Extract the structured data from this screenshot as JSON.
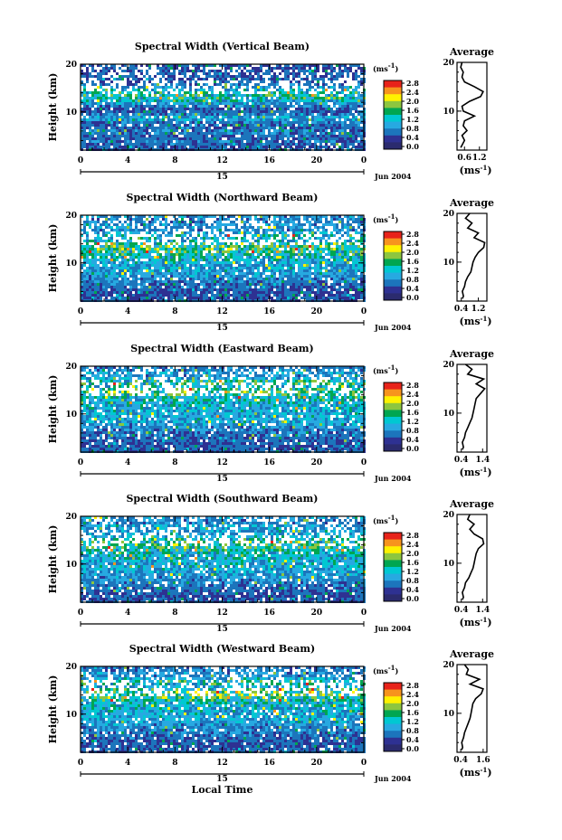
{
  "chart_data": {
    "type": "heatmap",
    "date_label": "Jun 2004",
    "day_label": "15",
    "xlabel": "Local Time",
    "ylabel": "Height (km)",
    "x_ticks": [
      "0",
      "4",
      "8",
      "12",
      "16",
      "20",
      "0"
    ],
    "y_ticks": [
      "20",
      "10"
    ],
    "xlim": [
      0,
      24
    ],
    "ylim": [
      2,
      20
    ],
    "colorbar": {
      "unit": "(ms",
      "unit_exp": "-1",
      "unit_close": ")",
      "labels": [
        "2.8",
        "2.4",
        "2.0",
        "1.6",
        "1.2",
        "0.8",
        "0.4",
        "0.0"
      ],
      "range": [
        0,
        2.8
      ],
      "colors": [
        "#e8231a",
        "#f7941d",
        "#fff200",
        "#8dc63f",
        "#00a651",
        "#00c8d2",
        "#27a9e1",
        "#1c75bc",
        "#2e3192",
        "#2b2b6e"
      ]
    },
    "avg_title": "Average",
    "avg_unit": "(ms",
    "avg_unit_exp": "-1",
    "avg_unit_close": ")",
    "panels": [
      {
        "title": "Spectral Width (Vertical Beam)",
        "avg_ticks": [
          "0.6",
          "1.2"
        ],
        "avg_xlim": [
          0.3,
          1.5
        ],
        "average_profile": {
          "height_km": [
            2.5,
            3,
            4,
            5,
            6,
            7,
            8,
            9,
            10,
            11,
            12,
            13,
            14,
            15,
            16,
            17,
            18,
            19,
            20
          ],
          "width": [
            0.45,
            0.5,
            0.6,
            0.5,
            0.7,
            0.55,
            0.6,
            1.0,
            0.55,
            0.5,
            0.8,
            1.25,
            1.35,
            1.0,
            0.6,
            0.5,
            0.55,
            0.45,
            0.5
          ]
        }
      },
      {
        "title": "Spectral Width (Northward Beam)",
        "avg_ticks": [
          "0.4",
          "1.2"
        ],
        "avg_xlim": [
          0.2,
          1.6
        ],
        "average_profile": {
          "height_km": [
            2.5,
            3,
            4,
            5,
            6,
            7,
            8,
            9,
            10,
            11,
            12,
            13,
            14,
            15,
            16,
            17,
            18,
            19,
            20
          ],
          "width": [
            0.45,
            0.5,
            0.45,
            0.55,
            0.6,
            0.7,
            0.85,
            0.9,
            0.95,
            1.05,
            1.2,
            1.45,
            1.5,
            1.0,
            1.2,
            0.7,
            0.9,
            0.6,
            0.8
          ]
        }
      },
      {
        "title": "Spectral Width (Eastward Beam)",
        "avg_ticks": [
          "0.4",
          "1.4"
        ],
        "avg_xlim": [
          0.2,
          1.6
        ],
        "average_profile": {
          "height_km": [
            2.5,
            3,
            4,
            5,
            6,
            7,
            8,
            9,
            10,
            11,
            12,
            13,
            14,
            15,
            16,
            17,
            18,
            19,
            20
          ],
          "width": [
            0.45,
            0.5,
            0.45,
            0.55,
            0.6,
            0.7,
            0.8,
            0.9,
            0.95,
            1.0,
            1.05,
            1.1,
            1.3,
            1.5,
            1.1,
            1.45,
            0.7,
            0.9,
            0.6
          ]
        }
      },
      {
        "title": "Spectral Width (Southward Beam)",
        "avg_ticks": [
          "0.4",
          "1.4"
        ],
        "avg_xlim": [
          0.2,
          1.6
        ],
        "average_profile": {
          "height_km": [
            2.5,
            3,
            4,
            5,
            6,
            7,
            8,
            9,
            10,
            11,
            12,
            13,
            14,
            15,
            16,
            17,
            18,
            19,
            20
          ],
          "width": [
            0.45,
            0.5,
            0.45,
            0.55,
            0.6,
            0.75,
            0.85,
            0.95,
            1.0,
            1.05,
            1.1,
            1.2,
            1.45,
            1.4,
            1.0,
            0.8,
            1.0,
            0.7,
            0.8
          ]
        }
      },
      {
        "title": "Spectral Width (Westward Beam)",
        "avg_ticks": [
          "0.4",
          "1.6"
        ],
        "avg_xlim": [
          0.2,
          1.8
        ],
        "average_profile": {
          "height_km": [
            2.5,
            3,
            4,
            5,
            6,
            7,
            8,
            9,
            10,
            11,
            12,
            13,
            14,
            15,
            16,
            17,
            18,
            19,
            20
          ],
          "width": [
            0.45,
            0.5,
            0.45,
            0.55,
            0.6,
            0.7,
            0.8,
            0.9,
            0.95,
            1.0,
            1.05,
            1.2,
            1.5,
            1.6,
            0.9,
            1.4,
            0.7,
            0.8,
            0.6
          ]
        }
      }
    ]
  }
}
